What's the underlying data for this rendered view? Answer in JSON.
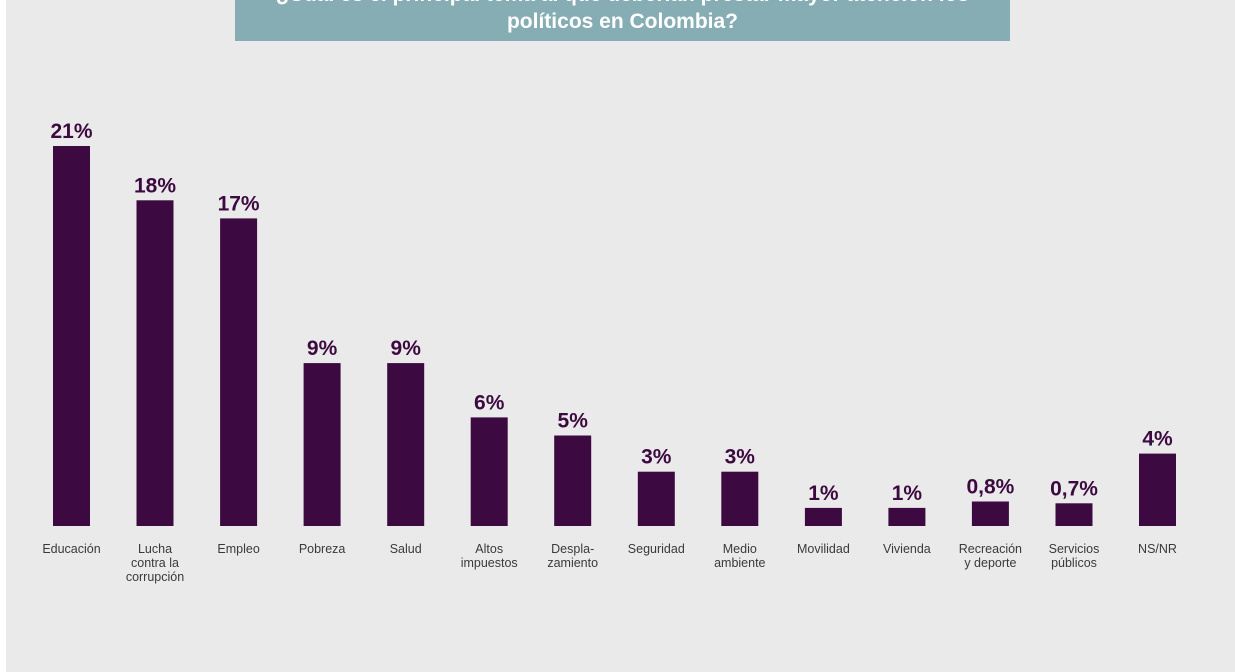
{
  "title": "¿Cuál es el principal tema al que deberían prestar mayor atención los políticos en Colombia?",
  "colors": {
    "bar": "#3c0a40",
    "title_bg": "#86adb3",
    "background": "#ebeaea"
  },
  "chart_data": {
    "type": "bar",
    "title": "¿Cuál es el principal tema al que deberían prestar mayor atención los políticos en Colombia?",
    "xlabel": "",
    "ylabel": "",
    "ylim": [
      0,
      21
    ],
    "grid": false,
    "categories": [
      [
        "Educación"
      ],
      [
        "Lucha",
        "contra la",
        "corrupción"
      ],
      [
        "Empleo"
      ],
      [
        "Pobreza"
      ],
      [
        "Salud"
      ],
      [
        "Altos",
        "impuestos"
      ],
      [
        "Despla-",
        "zamiento"
      ],
      [
        "Seguridad"
      ],
      [
        "Medio",
        "ambiente"
      ],
      [
        "Movilidad"
      ],
      [
        "Vivienda"
      ],
      [
        "Recreación",
        "y deporte"
      ],
      [
        "Servicios",
        "públicos"
      ],
      [
        "NS/NR"
      ]
    ],
    "values": [
      21,
      18,
      17,
      9,
      9,
      6,
      5,
      3,
      3,
      1,
      1,
      0.8,
      0.7,
      4
    ],
    "value_labels": [
      "21%",
      "18%",
      "17%",
      "9%",
      "9%",
      "6%",
      "5%",
      "3%",
      "3%",
      "1%",
      "1%",
      "0,8%",
      "0,7%",
      "4%"
    ]
  }
}
